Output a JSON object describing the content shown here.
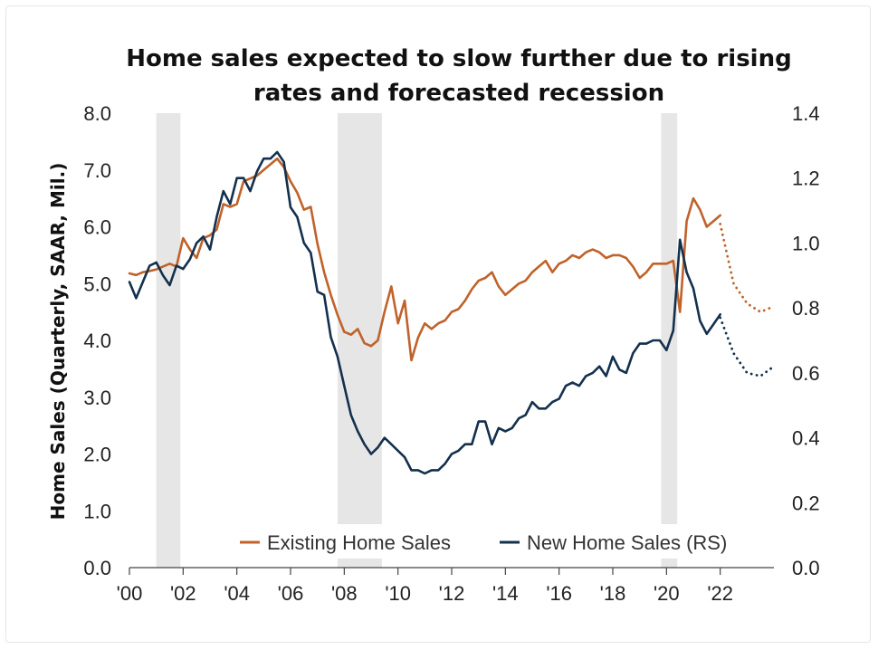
{
  "chart_data": {
    "type": "line",
    "title_lines": [
      "Home sales expected to slow further due to rising",
      "rates and forecasted recession"
    ],
    "ylabel": "Home Sales (Quarterly, SAAR, Mil.)",
    "y2label": "",
    "ylim": [
      0,
      8
    ],
    "y2lim": [
      0,
      1.4
    ],
    "xlim": [
      2000,
      2024
    ],
    "y_ticks": [
      "0.0",
      "1.0",
      "2.0",
      "3.0",
      "4.0",
      "5.0",
      "6.0",
      "7.0",
      "8.0"
    ],
    "y2_ticks": [
      "0.0",
      "0.2",
      "0.4",
      "0.6",
      "0.8",
      "1.0",
      "1.2",
      "1.4"
    ],
    "x_ticks": [
      {
        "x": 2000,
        "label": "'00"
      },
      {
        "x": 2002,
        "label": "'02"
      },
      {
        "x": 2004,
        "label": "'04"
      },
      {
        "x": 2006,
        "label": "'06"
      },
      {
        "x": 2008,
        "label": "'08"
      },
      {
        "x": 2010,
        "label": "'10"
      },
      {
        "x": 2012,
        "label": "'12"
      },
      {
        "x": 2014,
        "label": "'14"
      },
      {
        "x": 2016,
        "label": "'16"
      },
      {
        "x": 2018,
        "label": "'18"
      },
      {
        "x": 2020,
        "label": "'20"
      },
      {
        "x": 2022,
        "label": "'22"
      }
    ],
    "recessions": [
      [
        2001.0,
        2001.9
      ],
      [
        2007.75,
        2009.4
      ],
      [
        2019.8,
        2020.4
      ]
    ],
    "grid": false,
    "legend_position": "bottom-center",
    "series": [
      {
        "name": "Existing Home Sales",
        "axis": "left",
        "color": "#c0622a",
        "x": [
          2000.0,
          2000.25,
          2000.5,
          2000.75,
          2001.0,
          2001.25,
          2001.5,
          2001.75,
          2002.0,
          2002.25,
          2002.5,
          2002.75,
          2003.0,
          2003.25,
          2003.5,
          2003.75,
          2004.0,
          2004.25,
          2004.5,
          2004.75,
          2005.0,
          2005.25,
          2005.5,
          2005.75,
          2006.0,
          2006.25,
          2006.5,
          2006.75,
          2007.0,
          2007.25,
          2007.5,
          2007.75,
          2008.0,
          2008.25,
          2008.5,
          2008.75,
          2009.0,
          2009.25,
          2009.5,
          2009.75,
          2010.0,
          2010.25,
          2010.5,
          2010.75,
          2011.0,
          2011.25,
          2011.5,
          2011.75,
          2012.0,
          2012.25,
          2012.5,
          2012.75,
          2013.0,
          2013.25,
          2013.5,
          2013.75,
          2014.0,
          2014.25,
          2014.5,
          2014.75,
          2015.0,
          2015.25,
          2015.5,
          2015.75,
          2016.0,
          2016.25,
          2016.5,
          2016.75,
          2017.0,
          2017.25,
          2017.5,
          2017.75,
          2018.0,
          2018.25,
          2018.5,
          2018.75,
          2019.0,
          2019.25,
          2019.5,
          2019.75,
          2020.0,
          2020.25,
          2020.5,
          2020.75,
          2021.0,
          2021.25,
          2021.5,
          2021.75,
          2022.0
        ],
        "values": [
          5.18,
          5.15,
          5.2,
          5.22,
          5.25,
          5.3,
          5.35,
          5.3,
          5.8,
          5.6,
          5.45,
          5.8,
          5.85,
          5.95,
          6.4,
          6.35,
          6.4,
          6.8,
          6.85,
          6.9,
          7.0,
          7.1,
          7.2,
          7.05,
          6.8,
          6.6,
          6.3,
          6.35,
          5.7,
          5.2,
          4.8,
          4.45,
          4.15,
          4.1,
          4.2,
          3.95,
          3.9,
          4.0,
          4.5,
          4.95,
          4.3,
          4.7,
          3.65,
          4.05,
          4.3,
          4.2,
          4.3,
          4.35,
          4.5,
          4.55,
          4.7,
          4.9,
          5.05,
          5.1,
          5.2,
          4.95,
          4.8,
          4.9,
          5.0,
          5.05,
          5.2,
          5.3,
          5.4,
          5.2,
          5.35,
          5.4,
          5.5,
          5.45,
          5.55,
          5.6,
          5.55,
          5.45,
          5.5,
          5.5,
          5.45,
          5.3,
          5.1,
          5.2,
          5.35,
          5.35,
          5.35,
          5.4,
          4.5,
          6.1,
          6.5,
          6.3,
          6.0,
          6.1,
          6.2
        ],
        "forecast_x": [
          2022.0,
          2022.5,
          2023.0,
          2023.5,
          2024.0
        ],
        "forecast_values": [
          6.05,
          5.0,
          4.65,
          4.5,
          4.6
        ]
      },
      {
        "name": "New Home Sales (RS)",
        "axis": "right",
        "color": "#13304d",
        "x": [
          2000.0,
          2000.25,
          2000.5,
          2000.75,
          2001.0,
          2001.25,
          2001.5,
          2001.75,
          2002.0,
          2002.25,
          2002.5,
          2002.75,
          2003.0,
          2003.25,
          2003.5,
          2003.75,
          2004.0,
          2004.25,
          2004.5,
          2004.75,
          2005.0,
          2005.25,
          2005.5,
          2005.75,
          2006.0,
          2006.25,
          2006.5,
          2006.75,
          2007.0,
          2007.25,
          2007.5,
          2007.75,
          2008.0,
          2008.25,
          2008.5,
          2008.75,
          2009.0,
          2009.25,
          2009.5,
          2009.75,
          2010.0,
          2010.25,
          2010.5,
          2010.75,
          2011.0,
          2011.25,
          2011.5,
          2011.75,
          2012.0,
          2012.25,
          2012.5,
          2012.75,
          2013.0,
          2013.25,
          2013.5,
          2013.75,
          2014.0,
          2014.25,
          2014.5,
          2014.75,
          2015.0,
          2015.25,
          2015.5,
          2015.75,
          2016.0,
          2016.25,
          2016.5,
          2016.75,
          2017.0,
          2017.25,
          2017.5,
          2017.75,
          2018.0,
          2018.25,
          2018.5,
          2018.75,
          2019.0,
          2019.25,
          2019.5,
          2019.75,
          2020.0,
          2020.25,
          2020.5,
          2020.75,
          2021.0,
          2021.25,
          2021.5,
          2021.75,
          2022.0
        ],
        "values": [
          0.88,
          0.83,
          0.88,
          0.93,
          0.94,
          0.9,
          0.87,
          0.93,
          0.92,
          0.95,
          1.0,
          1.02,
          0.98,
          1.08,
          1.16,
          1.12,
          1.2,
          1.2,
          1.16,
          1.22,
          1.26,
          1.26,
          1.28,
          1.25,
          1.11,
          1.08,
          1.0,
          0.97,
          0.85,
          0.84,
          0.71,
          0.65,
          0.56,
          0.47,
          0.42,
          0.38,
          0.35,
          0.37,
          0.4,
          0.38,
          0.36,
          0.34,
          0.3,
          0.3,
          0.29,
          0.3,
          0.3,
          0.32,
          0.35,
          0.36,
          0.38,
          0.38,
          0.45,
          0.45,
          0.38,
          0.43,
          0.42,
          0.43,
          0.46,
          0.47,
          0.51,
          0.49,
          0.49,
          0.51,
          0.52,
          0.56,
          0.57,
          0.56,
          0.59,
          0.6,
          0.62,
          0.59,
          0.65,
          0.61,
          0.6,
          0.66,
          0.69,
          0.69,
          0.7,
          0.7,
          0.67,
          0.73,
          1.01,
          0.91,
          0.86,
          0.76,
          0.72,
          0.75,
          0.78
        ],
        "forecast_x": [
          2022.0,
          2022.5,
          2023.0,
          2023.5,
          2024.0
        ],
        "forecast_values": [
          0.77,
          0.66,
          0.6,
          0.59,
          0.62
        ]
      }
    ]
  }
}
